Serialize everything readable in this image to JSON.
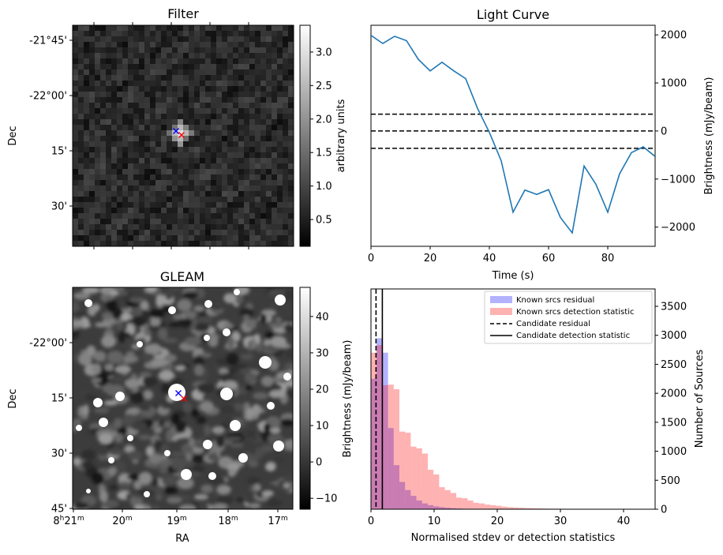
{
  "chart_data": [
    {
      "type": "heatmap",
      "title": "Filter",
      "ylabel": "Dec",
      "yticks": [
        "-21°45'",
        "-22°00'",
        "15'",
        "30'"
      ],
      "colorbar": {
        "label": "arbitrary units",
        "range": [
          0.1,
          3.4
        ],
        "ticks": [
          "0.5",
          "1.0",
          "1.5",
          "2.0",
          "2.5",
          "3.0"
        ],
        "colormap": "gray"
      },
      "markers": [
        {
          "symbol": "x",
          "color": "#0000ff",
          "position": "center"
        },
        {
          "symbol": "x",
          "color": "#ff0000",
          "position": "offset south-east"
        }
      ]
    },
    {
      "type": "line",
      "title": "Light Curve",
      "xlabel": "Time (s)",
      "ylabel": "Brightness (mJy/beam)",
      "xlim": [
        0,
        96
      ],
      "ylim": [
        -2400,
        2200
      ],
      "xticks": [
        "0",
        "20",
        "40",
        "60",
        "80"
      ],
      "yticks": [
        "-2000",
        "-1000",
        "0",
        "1000",
        "2000"
      ],
      "color": "#1f77b4",
      "series": [
        {
          "x": [
            0,
            4,
            8,
            12,
            16,
            20,
            24,
            28,
            32,
            36,
            40,
            44,
            48,
            52,
            56,
            60,
            64,
            68,
            72,
            76,
            80,
            84,
            88,
            92,
            96
          ],
          "values": [
            1990,
            1820,
            1970,
            1880,
            1490,
            1250,
            1430,
            1250,
            1090,
            470,
            -30,
            -620,
            -1690,
            -1230,
            -1320,
            -1220,
            -1800,
            -2120,
            -730,
            -1110,
            -1690,
            -890,
            -450,
            -330,
            -530
          ]
        }
      ],
      "hlines": [
        {
          "y": 350,
          "style": "dashed"
        },
        {
          "y": 0,
          "style": "dashed"
        },
        {
          "y": -360,
          "style": "dashed"
        }
      ]
    },
    {
      "type": "heatmap",
      "title": "GLEAM",
      "xlabel": "RA",
      "ylabel": "Dec",
      "xticks": [
        {
          "h": "8",
          "hs": "h",
          "m": "21",
          "ms": "m"
        },
        {
          "h": "",
          "hs": "",
          "m": "20",
          "ms": "m"
        },
        {
          "h": "",
          "hs": "",
          "m": "19",
          "ms": "m"
        },
        {
          "h": "",
          "hs": "",
          "m": "18",
          "ms": "m"
        },
        {
          "h": "",
          "hs": "",
          "m": "17",
          "ms": "m"
        }
      ],
      "yticks": [
        "-22°00'",
        "15'",
        "30'",
        "45'"
      ],
      "colorbar": {
        "range": [
          -13,
          48
        ],
        "ticks": [
          "-10",
          "0",
          "10",
          "20",
          "30",
          "40"
        ],
        "colormap": "gray"
      },
      "markers": [
        {
          "symbol": "x",
          "color": "#0000ff",
          "position": "center"
        },
        {
          "symbol": "x",
          "color": "#ff0000",
          "position": "offset south-east"
        }
      ]
    },
    {
      "type": "bar",
      "subtype": "histogram",
      "xlabel": "Normalised stdev or detection statistics",
      "ylabel": "Brightness (mJy/beam)",
      "ylabel_right": "Number of Sources",
      "xlim": [
        0,
        45
      ],
      "ylim": [
        0,
        3800
      ],
      "xticks": [
        "0",
        "10",
        "20",
        "30",
        "40"
      ],
      "yticks": [
        "0",
        "500",
        "1000",
        "1500",
        "2000",
        "2500",
        "3000",
        "3500"
      ],
      "bin_width": 0.9,
      "series": [
        {
          "name": "Known srcs residual",
          "color": "#0000ff",
          "alpha": 0.3,
          "values": [
            2250,
            2950,
            2700,
            1400,
            760,
            470,
            330,
            230,
            150,
            100,
            70,
            50,
            35,
            25,
            18,
            12,
            8,
            5,
            3,
            2
          ]
        },
        {
          "name": "Known srcs detection statistic",
          "color": "#ff0000",
          "alpha": 0.3,
          "values": [
            2700,
            2830,
            2140,
            2150,
            2070,
            1340,
            1320,
            1080,
            1050,
            960,
            680,
            600,
            380,
            330,
            280,
            200,
            190,
            150,
            110,
            100,
            80,
            70,
            60,
            45,
            35,
            30,
            25,
            20,
            18,
            15,
            12,
            10,
            9,
            8,
            7,
            6,
            5,
            5,
            4,
            4,
            3,
            3,
            2,
            2,
            2,
            1,
            1,
            1,
            1,
            1
          ]
        }
      ],
      "vlines": [
        {
          "name": "Candidate residual",
          "x": 0.8,
          "style": "dashed"
        },
        {
          "name": "Candidate detection statistic",
          "x": 1.8,
          "style": "solid"
        }
      ],
      "legend": "top-right"
    }
  ]
}
